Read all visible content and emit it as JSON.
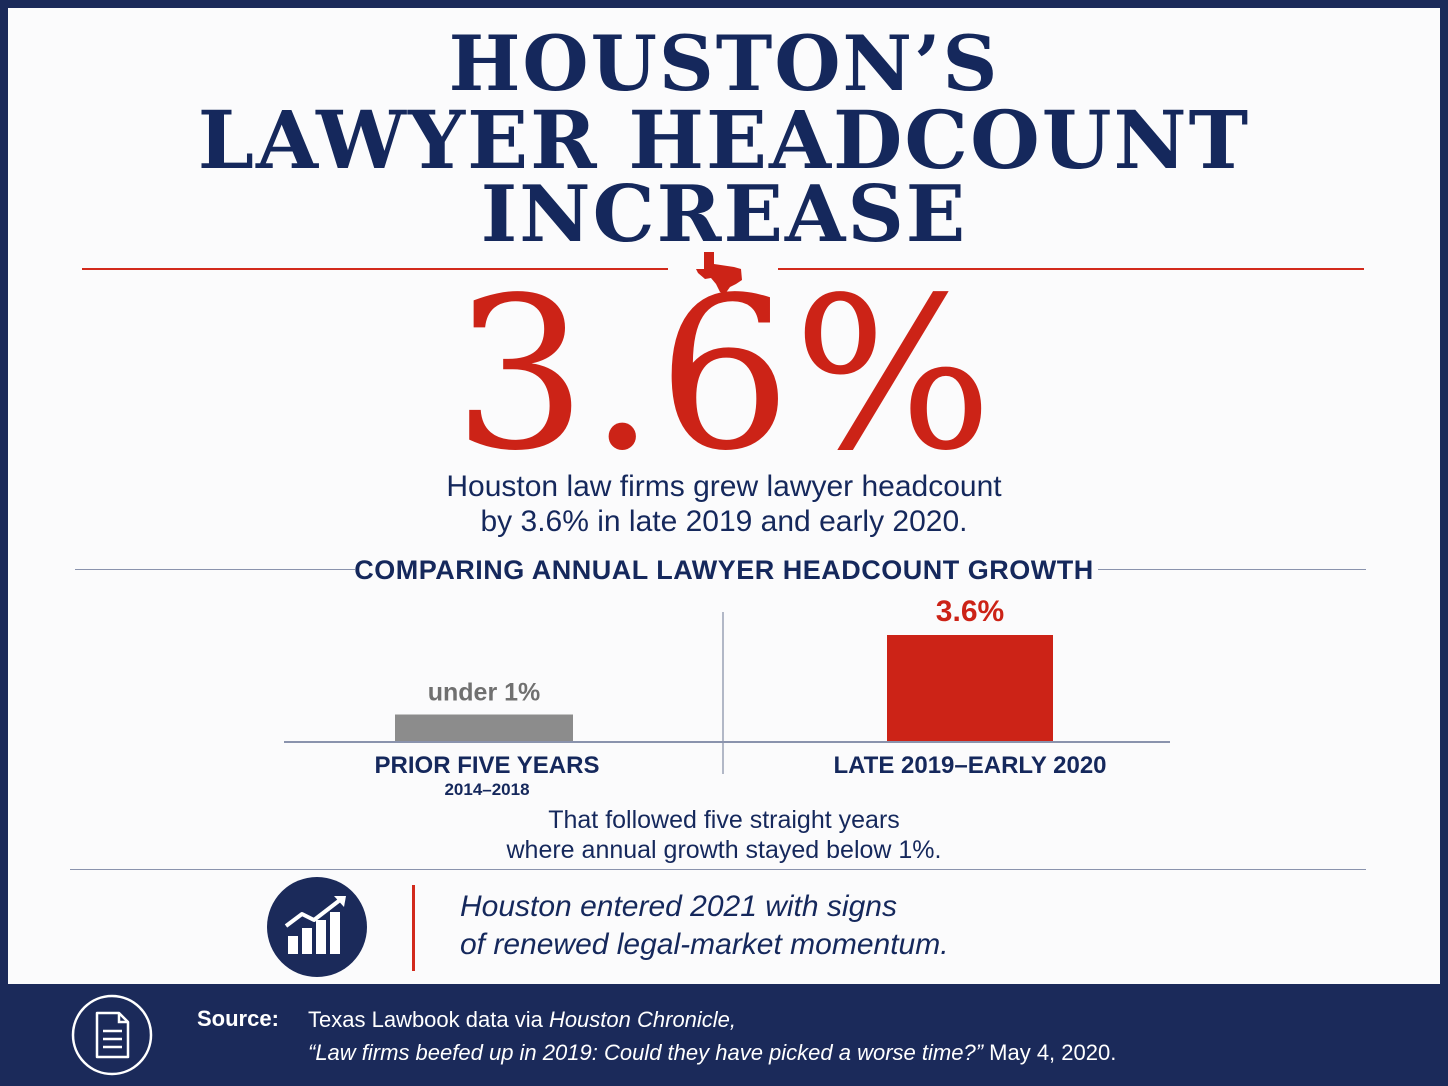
{
  "title": {
    "line1": "HOUSTON’S",
    "line2": "LAWYER HEADCOUNT",
    "line3": "INCREASE"
  },
  "headline": {
    "value": "3.6%",
    "description_line1": "Houston law firms grew lawyer headcount",
    "description_line2": "by 3.6% in late 2019 and early 2020."
  },
  "section_title": "COMPARING ANNUAL LAWYER HEADCOUNT GROWTH",
  "chart_data": {
    "type": "bar",
    "title": "COMPARING ANNUAL LAWYER HEADCOUNT GROWTH",
    "categories": [
      "PRIOR FIVE YEARS",
      "LATE 2019–EARLY 2020"
    ],
    "category_sublabels": [
      "2014–2018",
      ""
    ],
    "values": [
      0.9,
      3.6
    ],
    "value_labels": [
      "under 1%",
      "3.6%"
    ],
    "colors": [
      "#8c8c8c",
      "#cc2317"
    ],
    "label_colors": [
      "#707070",
      "#cc2317"
    ],
    "unit": "%",
    "ylim": [
      0,
      3.6
    ],
    "grid": false,
    "legend": "none"
  },
  "followup": {
    "line1": "That followed five straight years",
    "line2": "where annual growth stayed below 1%."
  },
  "momentum": {
    "icon": "bar-chart-growth-icon",
    "line1": "Houston entered 2021 with signs",
    "line2": "of renewed legal-market momentum."
  },
  "source": {
    "icon": "document-icon",
    "label": "Source:",
    "line1_plain": "Texas Lawbook data via ",
    "line1_italic": "Houston Chronicle,",
    "line2_italic": "“Law firms beefed up in 2019: Could they have picked a worse time?”",
    "line2_plain": " May 4, 2020."
  },
  "colors": {
    "navy": "#15285c",
    "red": "#cc2317",
    "frame": "#1b2a5a",
    "gray_bar": "#8c8c8c"
  }
}
